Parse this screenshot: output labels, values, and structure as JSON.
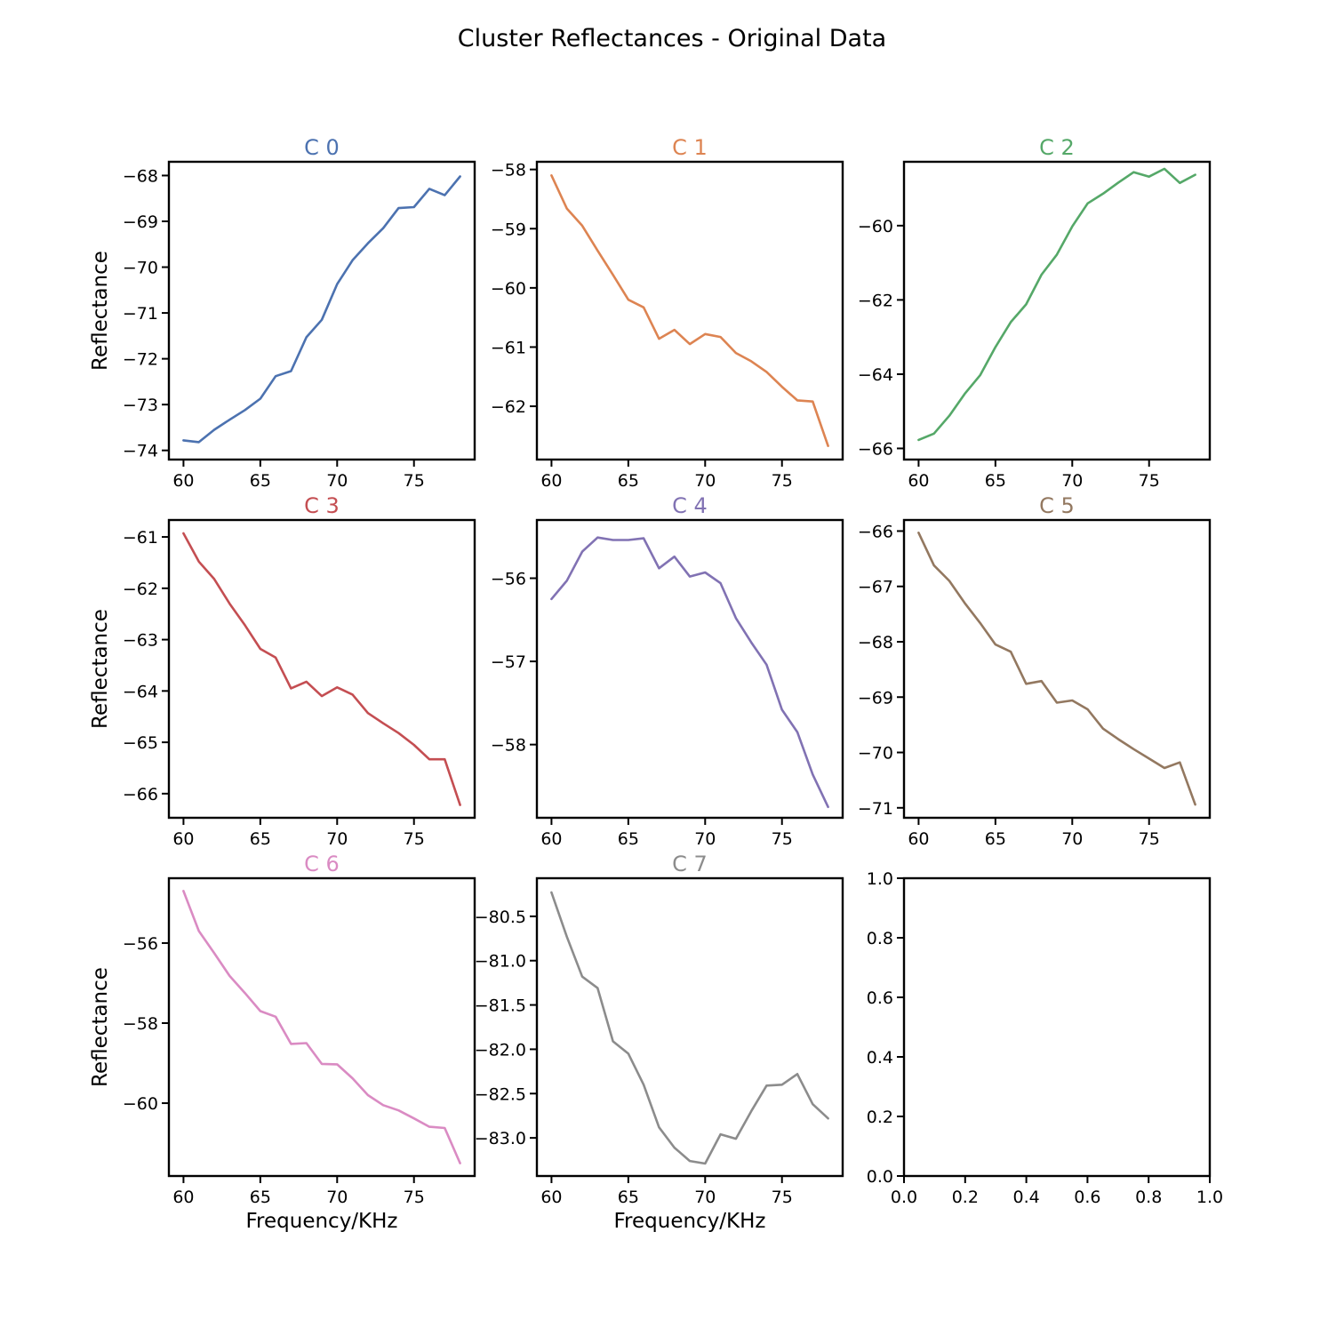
{
  "figure": {
    "title": "Cluster Reflectances - Original Data"
  },
  "chart_data": [
    {
      "type": "line",
      "title": "C 0",
      "color": "#4c72b0",
      "xlabel": "",
      "ylabel": "Reflectance",
      "xlim": [
        59.05,
        78.95
      ],
      "ylim": [
        -74.2,
        -67.7
      ],
      "xticks": [
        60,
        65,
        70,
        75
      ],
      "yticks": [
        -74,
        -73,
        -72,
        -71,
        -70,
        -69,
        -68
      ],
      "x": [
        60,
        61,
        62,
        63,
        64,
        65,
        66,
        67,
        68,
        69,
        70,
        71,
        72,
        73,
        74,
        75,
        76,
        77,
        78
      ],
      "y": [
        -73.78,
        -73.82,
        -73.55,
        -73.33,
        -73.12,
        -72.87,
        -72.38,
        -72.27,
        -71.53,
        -71.15,
        -70.37,
        -69.85,
        -69.48,
        -69.15,
        -68.71,
        -68.69,
        -68.29,
        -68.43,
        -68.02
      ]
    },
    {
      "type": "line",
      "title": "C 1",
      "color": "#dd8452",
      "xlabel": "",
      "ylabel": "",
      "xlim": [
        59.05,
        78.95
      ],
      "ylim": [
        -62.9,
        -57.87
      ],
      "xticks": [
        60,
        65,
        70,
        75
      ],
      "yticks": [
        -62,
        -61,
        -60,
        -59,
        -58
      ],
      "x": [
        60,
        61,
        62,
        63,
        64,
        65,
        66,
        67,
        68,
        69,
        70,
        71,
        72,
        73,
        74,
        75,
        76,
        77,
        78
      ],
      "y": [
        -58.1,
        -58.66,
        -58.95,
        -59.37,
        -59.78,
        -60.2,
        -60.33,
        -60.86,
        -60.71,
        -60.95,
        -60.78,
        -60.83,
        -61.1,
        -61.24,
        -61.42,
        -61.67,
        -61.9,
        -61.92,
        -62.67
      ]
    },
    {
      "type": "line",
      "title": "C 2",
      "color": "#55a868",
      "xlabel": "",
      "ylabel": "",
      "xlim": [
        59.05,
        78.95
      ],
      "ylim": [
        -66.3,
        -58.28
      ],
      "xticks": [
        60,
        65,
        70,
        75
      ],
      "yticks": [
        -66,
        -64,
        -62,
        -60
      ],
      "x": [
        60,
        61,
        62,
        63,
        64,
        65,
        66,
        67,
        68,
        69,
        70,
        71,
        72,
        73,
        74,
        75,
        76,
        77,
        78
      ],
      "y": [
        -65.77,
        -65.6,
        -65.12,
        -64.53,
        -64.03,
        -63.27,
        -62.6,
        -62.12,
        -61.32,
        -60.78,
        -60.02,
        -59.4,
        -59.14,
        -58.84,
        -58.56,
        -58.68,
        -58.47,
        -58.85,
        -58.63
      ]
    },
    {
      "type": "line",
      "title": "C 3",
      "color": "#c44e52",
      "xlabel": "",
      "ylabel": "Reflectance",
      "xlim": [
        59.05,
        78.95
      ],
      "ylim": [
        -66.47,
        -60.67
      ],
      "xticks": [
        60,
        65,
        70,
        75
      ],
      "yticks": [
        -66,
        -65,
        -64,
        -63,
        -62,
        -61
      ],
      "x": [
        60,
        61,
        62,
        63,
        64,
        65,
        66,
        67,
        68,
        69,
        70,
        71,
        72,
        73,
        74,
        75,
        76,
        77,
        78
      ],
      "y": [
        -60.93,
        -61.48,
        -61.82,
        -62.3,
        -62.72,
        -63.18,
        -63.35,
        -63.95,
        -63.82,
        -64.1,
        -63.93,
        -64.07,
        -64.43,
        -64.63,
        -64.82,
        -65.05,
        -65.33,
        -65.33,
        -66.22
      ]
    },
    {
      "type": "line",
      "title": "C 4",
      "color": "#8172b3",
      "xlabel": "",
      "ylabel": "",
      "xlim": [
        59.05,
        78.95
      ],
      "ylim": [
        -58.88,
        -55.3
      ],
      "xticks": [
        60,
        65,
        70,
        75
      ],
      "yticks": [
        -58,
        -57,
        -56
      ],
      "x": [
        60,
        61,
        62,
        63,
        64,
        65,
        66,
        67,
        68,
        69,
        70,
        71,
        72,
        73,
        74,
        75,
        76,
        77,
        78
      ],
      "y": [
        -56.25,
        -56.03,
        -55.68,
        -55.51,
        -55.54,
        -55.54,
        -55.52,
        -55.88,
        -55.74,
        -55.98,
        -55.93,
        -56.06,
        -56.48,
        -56.77,
        -57.04,
        -57.58,
        -57.85,
        -58.36,
        -58.75
      ]
    },
    {
      "type": "line",
      "title": "C 5",
      "color": "#937860",
      "xlabel": "",
      "ylabel": "",
      "xlim": [
        59.05,
        78.95
      ],
      "ylim": [
        -71.18,
        -65.8
      ],
      "xticks": [
        60,
        65,
        70,
        75
      ],
      "yticks": [
        -71,
        -70,
        -69,
        -68,
        -67,
        -66
      ],
      "x": [
        60,
        61,
        62,
        63,
        64,
        65,
        66,
        67,
        68,
        69,
        70,
        71,
        72,
        73,
        74,
        75,
        76,
        77,
        78
      ],
      "y": [
        -66.03,
        -66.62,
        -66.9,
        -67.3,
        -67.66,
        -68.05,
        -68.18,
        -68.76,
        -68.71,
        -69.1,
        -69.06,
        -69.22,
        -69.57,
        -69.76,
        -69.94,
        -70.11,
        -70.28,
        -70.18,
        -70.94
      ]
    },
    {
      "type": "line",
      "title": "C 6",
      "color": "#da8bc3",
      "xlabel": "Frequency/KHz",
      "ylabel": "Reflectance",
      "xlim": [
        59.05,
        78.95
      ],
      "ylim": [
        -61.82,
        -54.38
      ],
      "xticks": [
        60,
        65,
        70,
        75
      ],
      "yticks": [
        -60,
        -58,
        -56
      ],
      "x": [
        60,
        61,
        62,
        63,
        64,
        65,
        66,
        67,
        68,
        69,
        70,
        71,
        72,
        73,
        74,
        75,
        76,
        77,
        78
      ],
      "y": [
        -54.7,
        -55.7,
        -56.25,
        -56.82,
        -57.25,
        -57.7,
        -57.84,
        -58.52,
        -58.5,
        -59.02,
        -59.03,
        -59.38,
        -59.8,
        -60.05,
        -60.18,
        -60.38,
        -60.59,
        -60.62,
        -61.5
      ]
    },
    {
      "type": "line",
      "title": "C 7",
      "color": "#8c8c8c",
      "xlabel": "Frequency/KHz",
      "ylabel": "",
      "xlim": [
        59.05,
        78.95
      ],
      "ylim": [
        -83.43,
        -80.07
      ],
      "xticks": [
        60,
        65,
        70,
        75
      ],
      "yticks": [
        -83.0,
        -82.5,
        -82.0,
        -81.5,
        -81.0,
        -80.5
      ],
      "x": [
        60,
        61,
        62,
        63,
        64,
        65,
        66,
        67,
        68,
        69,
        70,
        71,
        72,
        73,
        74,
        75,
        76,
        77,
        78
      ],
      "y": [
        -80.23,
        -80.73,
        -81.18,
        -81.31,
        -81.91,
        -82.05,
        -82.4,
        -82.88,
        -83.11,
        -83.26,
        -83.29,
        -82.96,
        -83.01,
        -82.7,
        -82.41,
        -82.4,
        -82.28,
        -82.62,
        -82.78
      ]
    },
    {
      "type": "line",
      "title": "",
      "color": "#000000",
      "xlabel": "",
      "ylabel": "",
      "xlim": [
        0,
        1
      ],
      "ylim": [
        0,
        1
      ],
      "xticks": [
        0.0,
        0.2,
        0.4,
        0.6,
        0.8,
        1.0
      ],
      "yticks": [
        0.0,
        0.2,
        0.4,
        0.6,
        0.8,
        1.0
      ],
      "x": [],
      "y": []
    }
  ]
}
